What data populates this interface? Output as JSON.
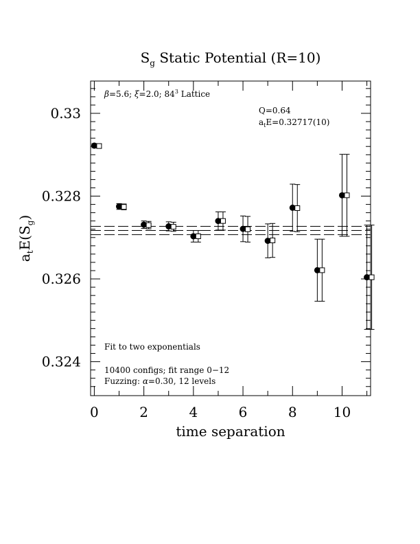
{
  "chart_data": {
    "type": "scatter",
    "title_main": "S",
    "title_sub": "g",
    "title_rest": " Static Potential (R=10)",
    "xlabel": "time separation",
    "ylabel_main": "a",
    "ylabel_sub1": "t",
    "ylabel_mid": "E(S",
    "ylabel_sub2": "g",
    "ylabel_end": ")",
    "xlim": [
      -0.15,
      11.15
    ],
    "ylim": [
      0.32318,
      0.33078
    ],
    "x_ticks": [
      0,
      2,
      4,
      6,
      8,
      10
    ],
    "x_tick_labels": [
      "0",
      "2",
      "4",
      "6",
      "8",
      "10"
    ],
    "y_ticks": [
      0.324,
      0.326,
      0.328,
      0.33
    ],
    "y_tick_labels": [
      "0.324",
      "0.326",
      "0.328",
      "0.33"
    ],
    "lattice_beta": "β",
    "lattice_text1": "=5.6; ",
    "lattice_xi": "ξ",
    "lattice_text2": "=2.0; 84",
    "lattice_sup": "3",
    "lattice_text3": " Lattice",
    "q_text": "Q=0.64",
    "energy_a": "a",
    "energy_sub": "t",
    "energy_rest": "E=0.32717(10)",
    "fit_text": "Fit to two exponentials",
    "configs_text": "10400 configs; fit range 0−12",
    "fuzzing_text1": "Fuzzing: ",
    "fuzzing_alpha": "α",
    "fuzzing_text2": "=0.30, 12 levels",
    "fit_band": {
      "center": 0.32717,
      "error": 0.0001,
      "x_range": [
        -0.15,
        11.15
      ]
    },
    "series": [
      {
        "marker": "filled-circle",
        "points": [
          {
            "x": 0,
            "y": 0.32922,
            "err": 5e-05
          },
          {
            "x": 1,
            "y": 0.32775,
            "err": 7e-05
          },
          {
            "x": 2,
            "y": 0.32731,
            "err": 9e-05
          },
          {
            "x": 3,
            "y": 0.32727,
            "err": 0.00011
          },
          {
            "x": 4,
            "y": 0.32703,
            "err": 0.00014
          },
          {
            "x": 5,
            "y": 0.3274,
            "err": 0.00022
          },
          {
            "x": 6,
            "y": 0.32721,
            "err": 0.00031
          },
          {
            "x": 7,
            "y": 0.32692,
            "err": 0.00041
          },
          {
            "x": 8,
            "y": 0.32772,
            "err": 0.00057
          },
          {
            "x": 9,
            "y": 0.32621,
            "err": 0.00075
          },
          {
            "x": 10,
            "y": 0.32802,
            "err": 0.00099
          },
          {
            "x": 11,
            "y": 0.32604,
            "err": 0.00126
          }
        ]
      },
      {
        "marker": "open-square",
        "points": [
          {
            "x": 0,
            "y": 0.32921,
            "err": 5e-05
          },
          {
            "x": 1,
            "y": 0.32774,
            "err": 7e-05
          },
          {
            "x": 2,
            "y": 0.3273,
            "err": 9e-05
          },
          {
            "x": 3,
            "y": 0.32726,
            "err": 0.00011
          },
          {
            "x": 4,
            "y": 0.32703,
            "err": 0.00014
          },
          {
            "x": 5,
            "y": 0.3274,
            "err": 0.00022
          },
          {
            "x": 6,
            "y": 0.3272,
            "err": 0.00031
          },
          {
            "x": 7,
            "y": 0.32693,
            "err": 0.00041
          },
          {
            "x": 8,
            "y": 0.32771,
            "err": 0.00057
          },
          {
            "x": 9,
            "y": 0.32621,
            "err": 0.00075
          },
          {
            "x": 10,
            "y": 0.32802,
            "err": 0.00099
          },
          {
            "x": 11,
            "y": 0.32604,
            "err": 0.00126
          }
        ]
      }
    ]
  }
}
